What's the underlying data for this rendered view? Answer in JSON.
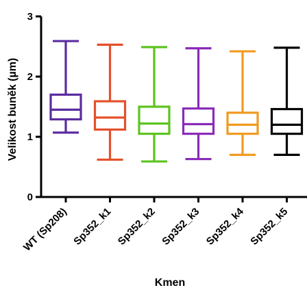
{
  "chart_data": {
    "type": "box",
    "xlabel": "Kmen",
    "ylabel": "Velikost buněk (µm)",
    "ylim": [
      0,
      3
    ],
    "yticks": [
      "0",
      "1",
      "2",
      "3"
    ],
    "grid": false,
    "categories": [
      "WT (Sp208)",
      "Sp352_k1",
      "Sp352_k2",
      "Sp352_k3",
      "Sp352_k4",
      "Sp352_k5"
    ],
    "series": [
      {
        "category": "WT (Sp208)",
        "min": 1.07,
        "q1": 1.29,
        "median": 1.45,
        "q3": 1.7,
        "max": 2.59,
        "color": "#5b2ca0"
      },
      {
        "category": "Sp352_k1",
        "min": 0.62,
        "q1": 1.12,
        "median": 1.32,
        "q3": 1.59,
        "max": 2.53,
        "color": "#e4502a"
      },
      {
        "category": "Sp352_k2",
        "min": 0.59,
        "q1": 1.05,
        "median": 1.22,
        "q3": 1.5,
        "max": 2.49,
        "color": "#5cc31f"
      },
      {
        "category": "Sp352_k3",
        "min": 0.63,
        "q1": 1.05,
        "median": 1.21,
        "q3": 1.47,
        "max": 2.47,
        "color": "#8a2bb8"
      },
      {
        "category": "Sp352_k4",
        "min": 0.7,
        "q1": 1.05,
        "median": 1.2,
        "q3": 1.4,
        "max": 2.42,
        "color": "#f19a1f"
      },
      {
        "category": "Sp352_k5",
        "min": 0.7,
        "q1": 1.05,
        "median": 1.2,
        "q3": 1.46,
        "max": 2.48,
        "color": "#000000"
      }
    ]
  }
}
